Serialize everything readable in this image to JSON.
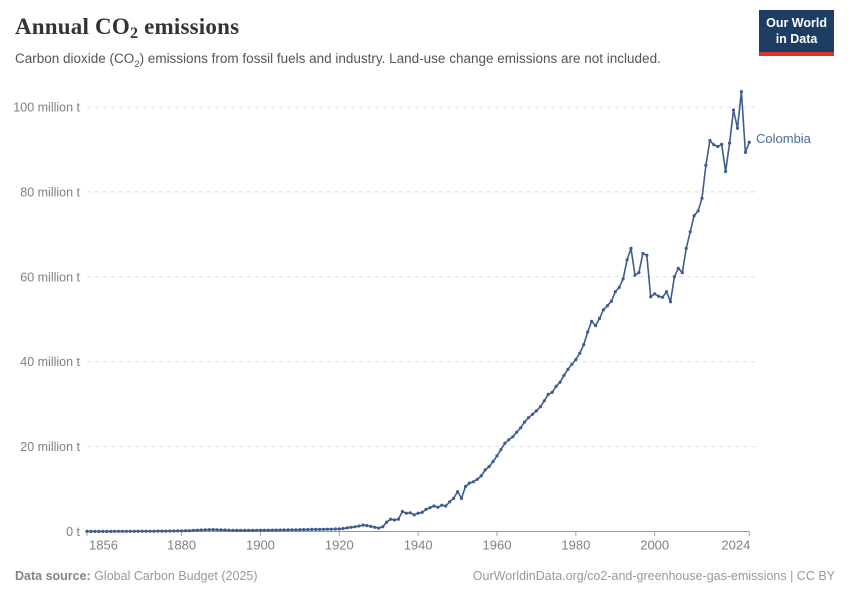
{
  "header": {
    "title_pre": "Annual CO",
    "title_sub": "2",
    "title_post": " emissions",
    "subtitle_pre": "Carbon dioxide (CO",
    "subtitle_sub": "2",
    "subtitle_post": ") emissions from fossil fuels and industry. Land-use change emissions are not included.",
    "logo_line1": "Our World",
    "logo_line2": "in Data",
    "logo_bg": "#1d3d63",
    "logo_accent": "#dc352d"
  },
  "footer": {
    "datasource_label": "Data source:",
    "datasource_value": " Global Carbon Budget (2025)",
    "link": "OurWorldinData.org/co2-and-greenhouse-gas-emissions",
    "suffix": " | CC BY"
  },
  "chart_data": {
    "type": "line",
    "title": "Annual CO₂ emissions",
    "entity": "Colombia",
    "series_label": "Colombia",
    "unit": "million tonnes CO₂",
    "line_color": "#3e5c8f",
    "label_color": "#4c6a9c",
    "grid": "dashed-horizontal",
    "legend_position": "end-of-line",
    "xlim": [
      1856,
      2024
    ],
    "ylim": [
      0,
      105
    ],
    "x_ticks": [
      1856,
      1880,
      1900,
      1920,
      1940,
      1960,
      1980,
      2000,
      2024
    ],
    "y_ticks": [
      0,
      20,
      40,
      60,
      80,
      100
    ],
    "y_tick_labels": [
      "0 t",
      "20 million t",
      "40 million t",
      "60 million t",
      "80 million t",
      "100 million t"
    ],
    "years": [
      1856,
      1857,
      1858,
      1859,
      1860,
      1861,
      1862,
      1863,
      1864,
      1865,
      1866,
      1867,
      1868,
      1869,
      1870,
      1871,
      1872,
      1873,
      1874,
      1875,
      1876,
      1877,
      1878,
      1879,
      1880,
      1881,
      1882,
      1883,
      1884,
      1885,
      1886,
      1887,
      1888,
      1889,
      1890,
      1891,
      1892,
      1893,
      1894,
      1895,
      1896,
      1897,
      1898,
      1899,
      1900,
      1901,
      1902,
      1903,
      1904,
      1905,
      1906,
      1907,
      1908,
      1909,
      1910,
      1911,
      1912,
      1913,
      1914,
      1915,
      1916,
      1917,
      1918,
      1919,
      1920,
      1921,
      1922,
      1923,
      1924,
      1925,
      1926,
      1927,
      1928,
      1929,
      1930,
      1931,
      1932,
      1933,
      1934,
      1935,
      1936,
      1937,
      1938,
      1939,
      1940,
      1941,
      1942,
      1943,
      1944,
      1945,
      1946,
      1947,
      1948,
      1949,
      1950,
      1951,
      1952,
      1953,
      1954,
      1955,
      1956,
      1957,
      1958,
      1959,
      1960,
      1961,
      1962,
      1963,
      1964,
      1965,
      1966,
      1967,
      1968,
      1969,
      1970,
      1971,
      1972,
      1973,
      1974,
      1975,
      1976,
      1977,
      1978,
      1979,
      1980,
      1981,
      1982,
      1983,
      1984,
      1985,
      1986,
      1987,
      1988,
      1989,
      1990,
      1991,
      1992,
      1993,
      1994,
      1995,
      1996,
      1997,
      1998,
      1999,
      2000,
      2001,
      2002,
      2003,
      2004,
      2005,
      2006,
      2007,
      2008,
      2009,
      2010,
      2011,
      2012,
      2013,
      2014,
      2015,
      2016,
      2017,
      2018,
      2019,
      2020,
      2021,
      2022,
      2023,
      2024
    ],
    "values": [
      0.02,
      0.02,
      0.02,
      0.03,
      0.03,
      0.03,
      0.03,
      0.04,
      0.04,
      0.04,
      0.05,
      0.05,
      0.05,
      0.06,
      0.06,
      0.07,
      0.08,
      0.08,
      0.09,
      0.1,
      0.1,
      0.11,
      0.12,
      0.13,
      0.15,
      0.18,
      0.2,
      0.25,
      0.3,
      0.35,
      0.4,
      0.42,
      0.45,
      0.4,
      0.38,
      0.35,
      0.3,
      0.28,
      0.26,
      0.25,
      0.25,
      0.26,
      0.27,
      0.28,
      0.3,
      0.3,
      0.3,
      0.32,
      0.33,
      0.35,
      0.36,
      0.38,
      0.4,
      0.4,
      0.42,
      0.45,
      0.45,
      0.5,
      0.5,
      0.5,
      0.52,
      0.55,
      0.55,
      0.58,
      0.6,
      0.7,
      0.85,
      1.0,
      1.1,
      1.3,
      1.5,
      1.4,
      1.2,
      1.0,
      0.8,
      1.1,
      2.2,
      2.9,
      2.7,
      2.9,
      4.7,
      4.3,
      4.4,
      3.9,
      4.3,
      4.5,
      5.2,
      5.6,
      6.0,
      5.7,
      6.2,
      6.0,
      7.0,
      7.8,
      9.4,
      7.8,
      10.6,
      11.4,
      11.7,
      12.3,
      13.1,
      14.5,
      15.3,
      16.5,
      17.8,
      19.3,
      20.8,
      21.6,
      22.3,
      23.4,
      24.4,
      25.8,
      26.8,
      27.6,
      28.4,
      29.4,
      30.8,
      32.3,
      32.8,
      34.2,
      35.2,
      36.8,
      38.2,
      39.4,
      40.5,
      42.0,
      44.0,
      47.0,
      49.5,
      48.5,
      50.2,
      52.2,
      53.2,
      54.2,
      56.5,
      57.5,
      59.5,
      64.0,
      66.7,
      60.4,
      61.0,
      65.5,
      65.1,
      55.3,
      56.0,
      55.4,
      55.2,
      56.5,
      54.1,
      60.0,
      62.0,
      61.0,
      66.7,
      70.6,
      74.4,
      75.5,
      78.5,
      86.3,
      92.1,
      91.1,
      90.7,
      91.2,
      84.8,
      91.5,
      99.3,
      95.0,
      103.6,
      89.3,
      91.7
    ]
  }
}
